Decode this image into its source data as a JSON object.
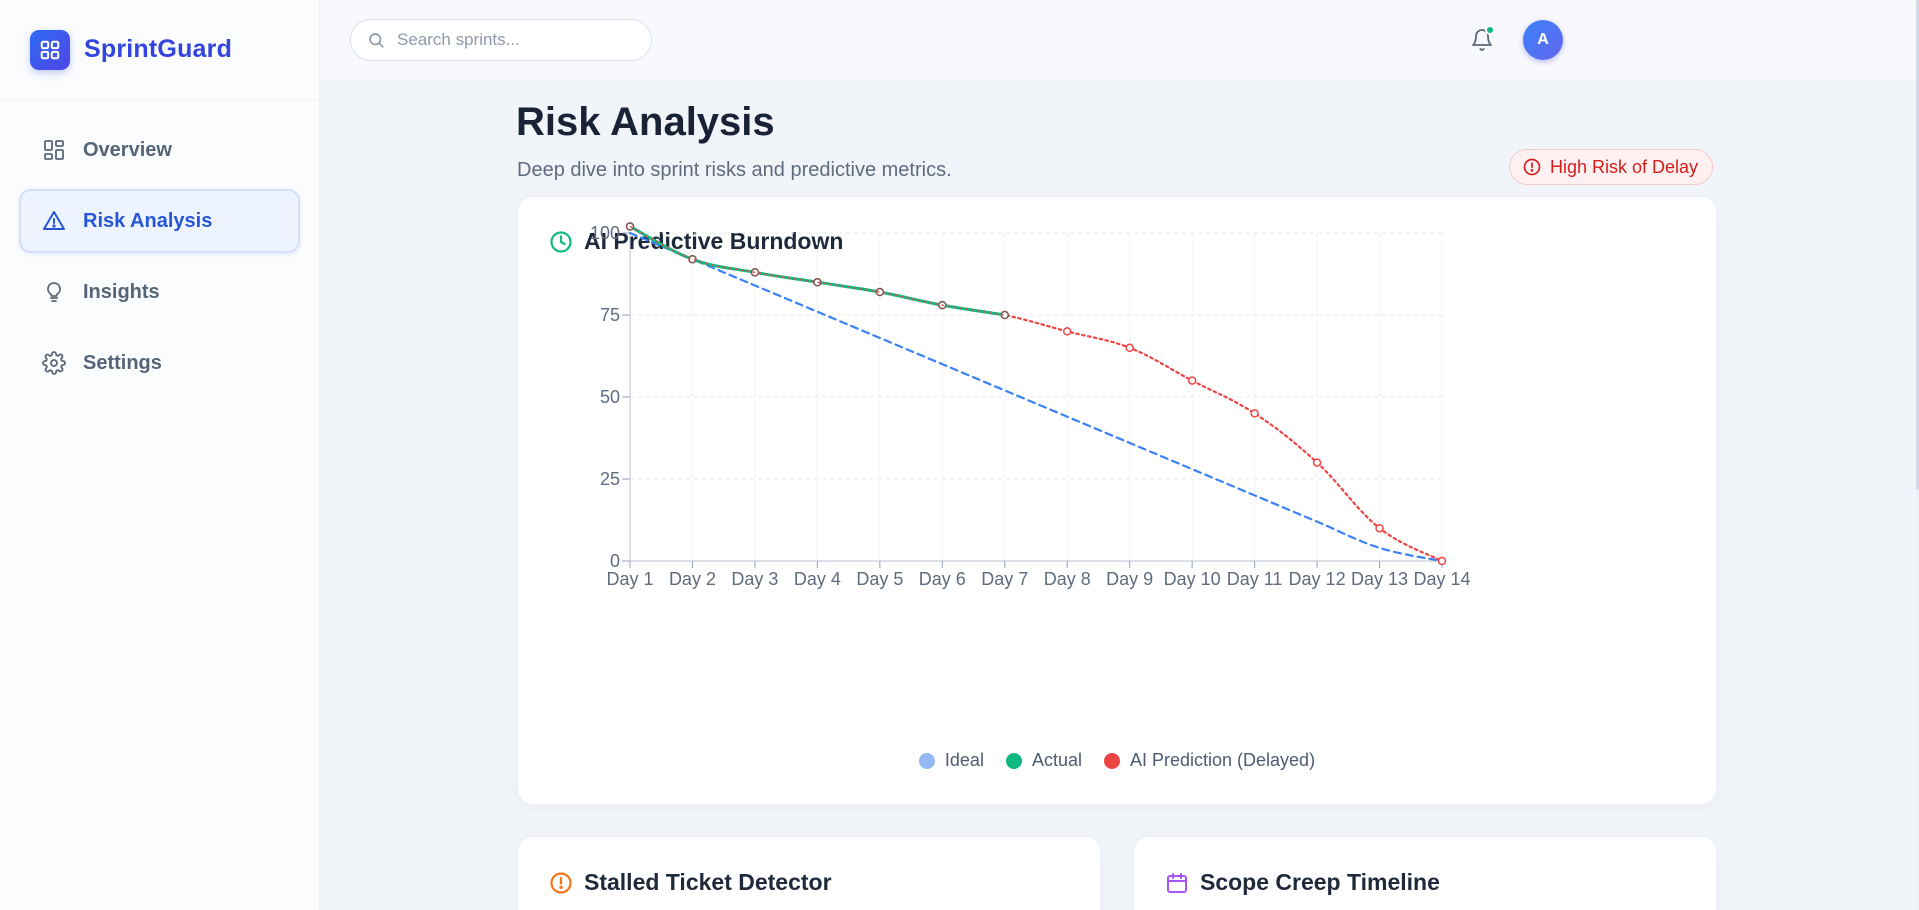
{
  "brand": {
    "name": "SprintGuard",
    "logo_icon": "grid-icon"
  },
  "sidebar": {
    "items": [
      {
        "label": "Overview",
        "icon": "grid-icon",
        "active": false
      },
      {
        "label": "Risk Analysis",
        "icon": "warning-triangle-icon",
        "active": true
      },
      {
        "label": "Insights",
        "icon": "lightbulb-icon",
        "active": false
      },
      {
        "label": "Settings",
        "icon": "gear-icon",
        "active": false
      }
    ]
  },
  "header": {
    "search_placeholder": "Search sprints...",
    "search_value": "",
    "notification_icon": "bell-icon",
    "has_notification": true,
    "avatar_initial": "A"
  },
  "page": {
    "title": "Risk Analysis",
    "subtitle": "Deep dive into sprint risks and predictive metrics.",
    "risk_badge": "High Risk of Delay"
  },
  "burndown_card": {
    "title": "AI Predictive Burndown",
    "icon": "clock-icon"
  },
  "cards": {
    "stalled_title": "Stalled Ticket Detector",
    "stalled_icon": "alert-circle-icon",
    "scope_title": "Scope Creep Timeline",
    "scope_icon": "calendar-icon"
  },
  "colors": {
    "accent": "#2757d6",
    "ideal": "#3b82f6",
    "actual": "#10b981",
    "prediction": "#ef4444",
    "risk": "#d41e1e"
  },
  "chart_data": {
    "type": "line",
    "title": "",
    "xlabel": "",
    "ylabel": "",
    "categories": [
      "Day 1",
      "Day 2",
      "Day 3",
      "Day 4",
      "Day 5",
      "Day 6",
      "Day 7",
      "Day 8",
      "Day 9",
      "Day 10",
      "Day 11",
      "Day 12",
      "Day 13",
      "Day 14"
    ],
    "ylim": [
      0,
      100
    ],
    "yticks": [
      0,
      25,
      50,
      75,
      100
    ],
    "grid": true,
    "legend_position": "bottom",
    "series": [
      {
        "name": "Ideal",
        "style": "dashed",
        "color": "#3b82f6",
        "legend_color": "#93b8f5",
        "values": [
          100,
          92,
          84,
          76,
          68,
          60,
          52,
          44,
          36,
          28,
          20,
          12,
          4,
          0
        ]
      },
      {
        "name": "Actual",
        "style": "solid",
        "color": "#10b981",
        "legend_color": "#10b981",
        "values": [
          102,
          92,
          88,
          85,
          82,
          78,
          75,
          null,
          null,
          null,
          null,
          null,
          null,
          null
        ]
      },
      {
        "name": "AI Prediction (Delayed)",
        "style": "dotted",
        "color": "#ef4444",
        "legend_color": "#ef4444",
        "values": [
          102,
          92,
          88,
          85,
          82,
          78,
          75,
          70,
          65,
          55,
          45,
          30,
          10,
          0
        ]
      }
    ]
  }
}
